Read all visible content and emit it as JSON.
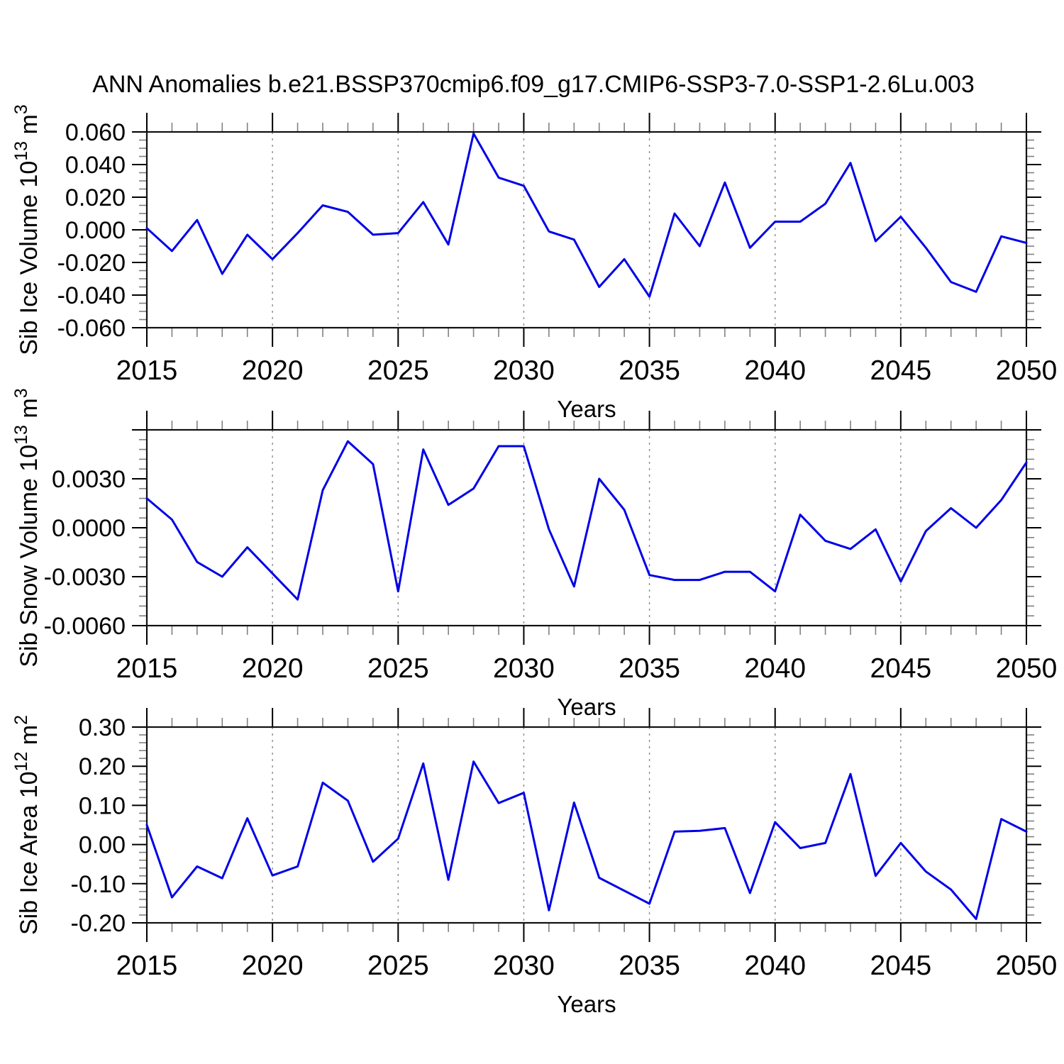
{
  "title": "ANN Anomalies b.e21.BSSP370cmip6.f09_g17.CMIP6-SSP3-7.0-SSP1-2.6Lu.003",
  "colors": {
    "line": "#0000e8",
    "grid": "#8a8a8a",
    "axis": "#111111",
    "minor_tick": "#808080",
    "major_tick": "#000000"
  },
  "chart_data": [
    {
      "id": "sib-ice-volume",
      "type": "line",
      "ylabel": {
        "prefix": "Sib Ice Volume 10",
        "exponent": "13",
        "unit": " m",
        "unit_exponent": "3",
        "plain": "Sib Ice Volume 10^13 m^3"
      },
      "xlabel": "Years",
      "x": [
        2015,
        2016,
        2017,
        2018,
        2019,
        2020,
        2021,
        2022,
        2023,
        2024,
        2025,
        2026,
        2027,
        2028,
        2029,
        2030,
        2031,
        2032,
        2033,
        2034,
        2035,
        2036,
        2037,
        2038,
        2039,
        2040,
        2041,
        2042,
        2043,
        2044,
        2045,
        2046,
        2047,
        2048,
        2049,
        2050
      ],
      "values": [
        0.001,
        -0.013,
        0.006,
        -0.027,
        -0.003,
        -0.018,
        -0.002,
        0.015,
        0.011,
        -0.003,
        -0.002,
        0.017,
        -0.009,
        0.059,
        0.032,
        0.027,
        -0.001,
        -0.006,
        -0.035,
        -0.018,
        -0.041,
        0.01,
        -0.01,
        0.029,
        -0.011,
        0.005,
        0.005,
        0.016,
        0.041,
        -0.007,
        0.008,
        -0.011,
        -0.032,
        -0.038,
        -0.004,
        -0.008
      ],
      "xlim": [
        2015,
        2050
      ],
      "ylim": [
        -0.06,
        0.06
      ],
      "ytick_major": 0.02,
      "ytick_minor": 0.005,
      "ytick_labels": [
        {
          "value": 0.06,
          "label": "0.060"
        },
        {
          "value": 0.04,
          "label": "0.040"
        },
        {
          "value": 0.02,
          "label": "0.020"
        },
        {
          "value": 0.0,
          "label": "0.000"
        },
        {
          "value": -0.02,
          "label": "-0.020"
        },
        {
          "value": -0.04,
          "label": "-0.040"
        },
        {
          "value": -0.06,
          "label": "-0.060"
        }
      ],
      "xtick_labels": [
        "2015",
        "2020",
        "2025",
        "2030",
        "2035",
        "2040",
        "2045",
        "2050"
      ],
      "xtick_minor_step": 1,
      "grid_years": [
        2020,
        2025,
        2030,
        2035,
        2040,
        2045
      ],
      "grid_style": "vertical-dashed",
      "legend": "none"
    },
    {
      "id": "sib-snow-volume",
      "type": "line",
      "ylabel": {
        "prefix": "Sib Snow Volume 10",
        "exponent": "13",
        "unit": " m",
        "unit_exponent": "3",
        "plain": "Sib Snow Volume 10^13 m^3"
      },
      "xlabel": "Years",
      "x": [
        2015,
        2016,
        2017,
        2018,
        2019,
        2020,
        2021,
        2022,
        2023,
        2024,
        2025,
        2026,
        2027,
        2028,
        2029,
        2030,
        2031,
        2032,
        2033,
        2034,
        2035,
        2036,
        2037,
        2038,
        2039,
        2040,
        2041,
        2042,
        2043,
        2044,
        2045,
        2046,
        2047,
        2048,
        2049,
        2050
      ],
      "values": [
        0.0018,
        0.0005,
        -0.0021,
        -0.003,
        -0.0012,
        -0.0028,
        -0.0044,
        0.0023,
        0.0053,
        0.0039,
        -0.0039,
        0.0048,
        0.0014,
        0.0024,
        0.005,
        0.005,
        -0.0001,
        -0.0036,
        0.003,
        0.0011,
        -0.0029,
        -0.0032,
        -0.0032,
        -0.0027,
        -0.0027,
        -0.0039,
        0.0008,
        -0.0008,
        -0.0013,
        -0.0001,
        -0.0033,
        -0.0002,
        0.0012,
        0.0,
        0.0017,
        0.004
      ],
      "xlim": [
        2015,
        2050
      ],
      "ylim": [
        -0.006,
        0.006
      ],
      "ytick_major": 0.003,
      "ytick_minor": 0.0006,
      "ytick_labels": [
        {
          "value": 0.003,
          "label": "0.0030"
        },
        {
          "value": 0.0,
          "label": "0.0000"
        },
        {
          "value": -0.003,
          "label": "-0.0030"
        },
        {
          "value": -0.006,
          "label": "-0.0060"
        }
      ],
      "xtick_labels": [
        "2015",
        "2020",
        "2025",
        "2030",
        "2035",
        "2040",
        "2045",
        "2050"
      ],
      "xtick_minor_step": 1,
      "grid_years": [
        2020,
        2025,
        2030,
        2035,
        2040,
        2045
      ],
      "grid_style": "vertical-dashed",
      "legend": "none"
    },
    {
      "id": "sib-ice-area",
      "type": "line",
      "ylabel": {
        "prefix": "Sib Ice Area 10",
        "exponent": "12",
        "unit": " m",
        "unit_exponent": "2",
        "plain": "Sib Ice Area 10^12 m^2"
      },
      "xlabel": "Years",
      "x": [
        2015,
        2016,
        2017,
        2018,
        2019,
        2020,
        2021,
        2022,
        2023,
        2024,
        2025,
        2026,
        2027,
        2028,
        2029,
        2030,
        2031,
        2032,
        2033,
        2034,
        2035,
        2036,
        2037,
        2038,
        2039,
        2040,
        2041,
        2042,
        2043,
        2044,
        2045,
        2046,
        2047,
        2048,
        2049,
        2050
      ],
      "values": [
        0.05,
        -0.135,
        -0.056,
        -0.086,
        0.067,
        -0.079,
        -0.056,
        0.158,
        0.112,
        -0.044,
        0.015,
        0.207,
        -0.09,
        0.212,
        0.106,
        0.132,
        -0.168,
        0.107,
        -0.085,
        -0.118,
        -0.151,
        0.033,
        0.035,
        0.042,
        -0.124,
        0.057,
        -0.009,
        0.004,
        0.18,
        -0.08,
        0.004,
        -0.069,
        -0.115,
        -0.19,
        0.065,
        0.033
      ],
      "xlim": [
        2015,
        2050
      ],
      "ylim": [
        -0.2,
        0.3
      ],
      "ytick_major": 0.1,
      "ytick_minor": 0.02,
      "ytick_labels": [
        {
          "value": 0.3,
          "label": "0.30"
        },
        {
          "value": 0.2,
          "label": "0.20"
        },
        {
          "value": 0.1,
          "label": "0.10"
        },
        {
          "value": 0.0,
          "label": "0.00"
        },
        {
          "value": -0.1,
          "label": "-0.10"
        },
        {
          "value": -0.2,
          "label": "-0.20"
        }
      ],
      "xtick_labels": [
        "2015",
        "2020",
        "2025",
        "2030",
        "2035",
        "2040",
        "2045",
        "2050"
      ],
      "xtick_minor_step": 1,
      "grid_years": [
        2020,
        2025,
        2030,
        2035,
        2040,
        2045
      ],
      "grid_style": "vertical-dashed",
      "legend": "none"
    }
  ]
}
